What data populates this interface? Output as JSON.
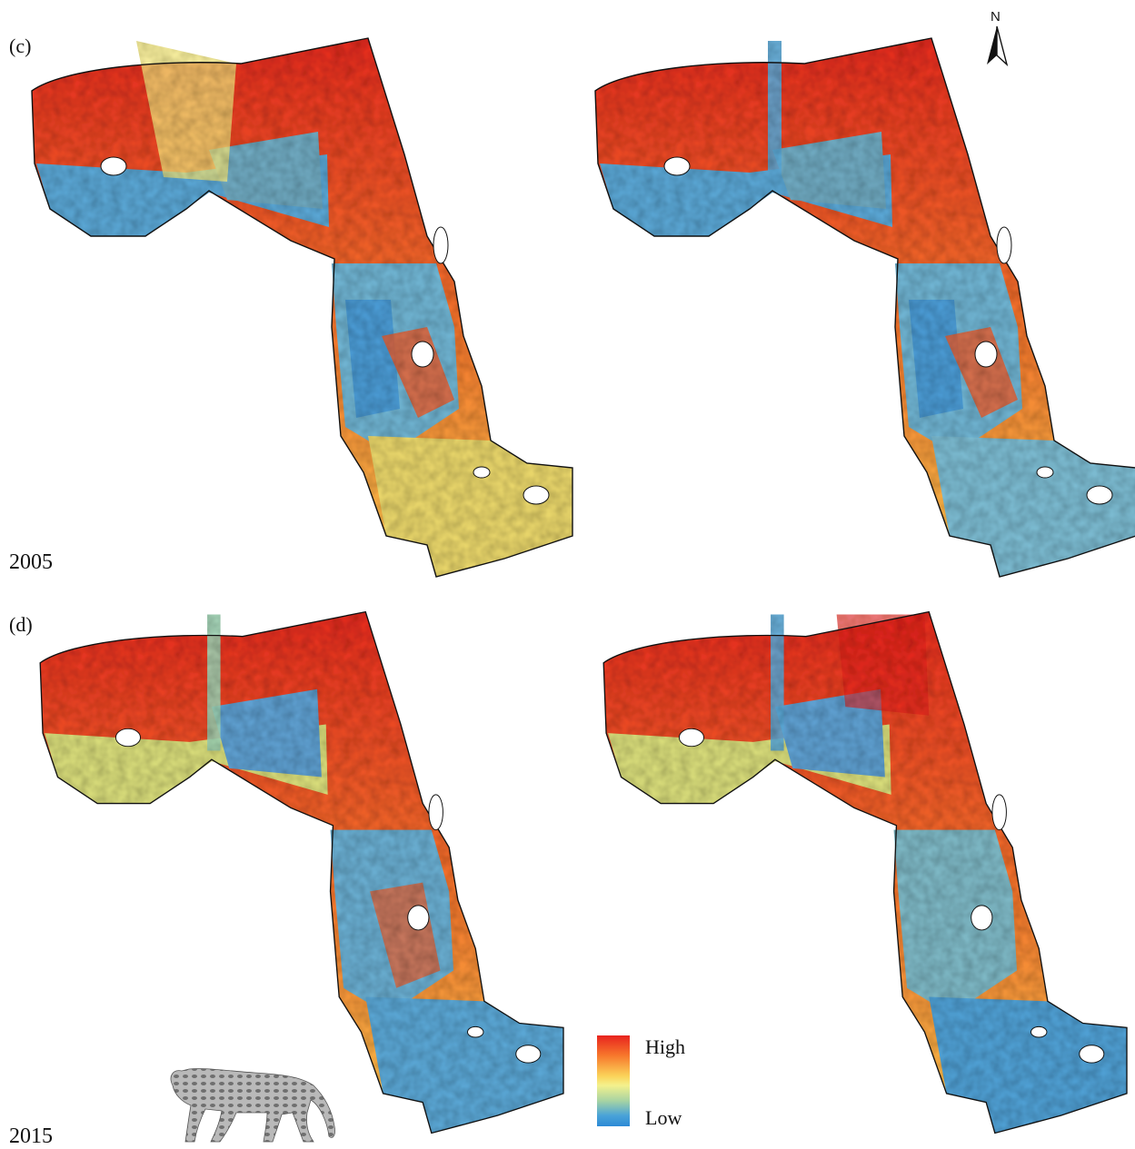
{
  "panels": {
    "c": {
      "label": "(c)",
      "year": "2005"
    },
    "d": {
      "label": "(d)",
      "year": "2015"
    }
  },
  "north_arrow": {
    "label": "N",
    "icon": "north-arrow-icon"
  },
  "legend": {
    "high_label": "High",
    "low_label": "Low",
    "colors": [
      "#e8231e",
      "#f7772c",
      "#fbd45a",
      "#f4f18c",
      "#a7d3a3",
      "#4aa3d8",
      "#2c8ad6"
    ]
  },
  "colors": {
    "high": "#e32a1e",
    "mid_high": "#f4762c",
    "mid": "#f3e66a",
    "mid_low": "#9ccfb0",
    "low": "#3d9ad8",
    "outline": "#111111"
  },
  "species_silhouette": "ocelot-icon"
}
